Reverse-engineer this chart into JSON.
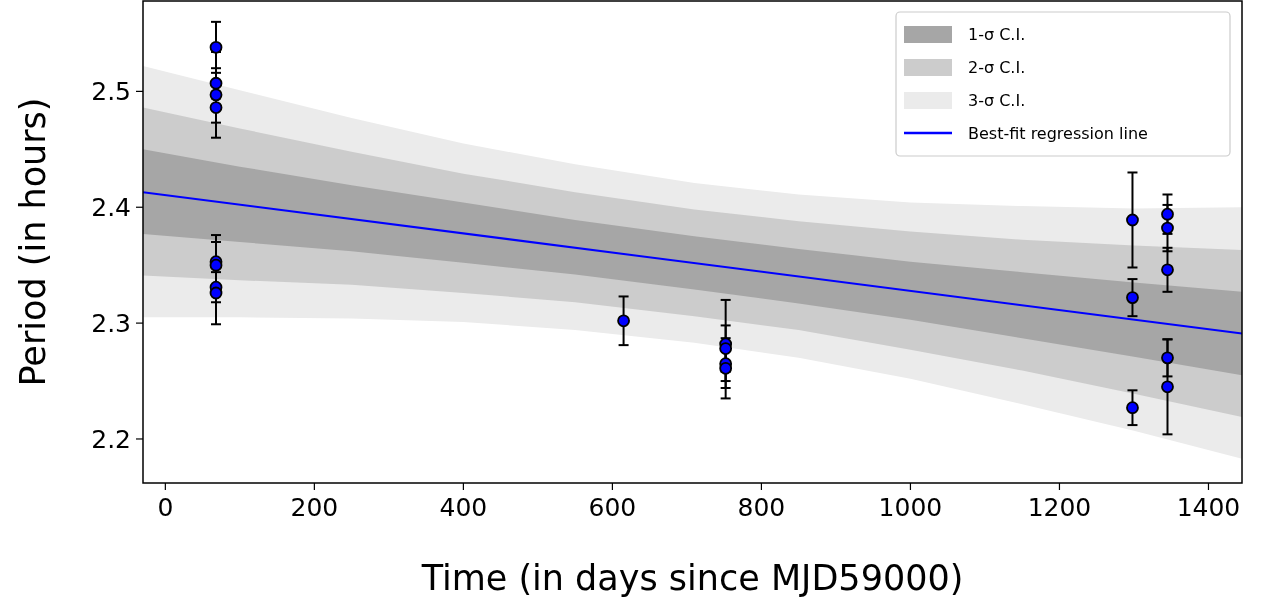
{
  "chart_data": {
    "type": "scatter",
    "xlabel": "Time (in days since MJD59000)",
    "ylabel": "Period (in hours)",
    "xlim": [
      -30,
      1445
    ],
    "ylim": [
      2.162,
      2.578
    ],
    "xticks": [
      0,
      200,
      400,
      600,
      800,
      1000,
      1200,
      1400
    ],
    "yticks": [
      2.2,
      2.3,
      2.4,
      2.5
    ],
    "grid": false,
    "legend": "top right",
    "series": [
      {
        "name": "3-σ C.I.",
        "type": "line",
        "color": "#ebebeb",
        "x": [
          -30,
          100,
          250,
          400,
          550,
          710,
          850,
          1000,
          1150,
          1300,
          1445
        ],
        "values": [
          null,
          null,
          null,
          null,
          null,
          null,
          null,
          null,
          null,
          null,
          null
        ],
        "upper": [
          2.522,
          2.501,
          2.477,
          2.455,
          2.437,
          2.421,
          2.411,
          2.404,
          2.401,
          2.399,
          2.4
        ],
        "lower": [
          2.305,
          2.305,
          2.304,
          2.301,
          2.294,
          2.283,
          2.27,
          2.252,
          2.23,
          2.207,
          2.183
        ]
      },
      {
        "name": "2-σ C.I.",
        "type": "line",
        "color": "#cccccc",
        "x": [
          -30,
          100,
          250,
          400,
          550,
          710,
          850,
          1000,
          1150,
          1300,
          1445
        ],
        "values": [
          null,
          null,
          null,
          null,
          null,
          null,
          null,
          null,
          null,
          null,
          null
        ],
        "upper": [
          2.486,
          2.468,
          2.448,
          2.429,
          2.413,
          2.398,
          2.388,
          2.379,
          2.372,
          2.367,
          2.363
        ],
        "lower": [
          2.341,
          2.337,
          2.333,
          2.326,
          2.318,
          2.306,
          2.294,
          2.277,
          2.259,
          2.239,
          2.219
        ]
      },
      {
        "name": "1-σ C.I.",
        "type": "line",
        "color": "#a6a6a6",
        "x": [
          -30,
          100,
          250,
          400,
          550,
          710,
          850,
          1000,
          1150,
          1300,
          1445
        ],
        "values": [
          null,
          null,
          null,
          null,
          null,
          null,
          null,
          null,
          null,
          null,
          null
        ],
        "upper": [
          2.45,
          2.435,
          2.419,
          2.404,
          2.389,
          2.375,
          2.364,
          2.353,
          2.344,
          2.335,
          2.327
        ],
        "lower": [
          2.377,
          2.37,
          2.362,
          2.352,
          2.342,
          2.329,
          2.317,
          2.303,
          2.287,
          2.271,
          2.255
        ]
      },
      {
        "name": "Best-fit regression line",
        "type": "line",
        "color": "#0000ff",
        "line_style": "solid",
        "x": [
          -30,
          1445
        ],
        "values": [
          2.413,
          2.291
        ]
      },
      {
        "marker": "circle",
        "color": "#0000ff",
        "x": [
          68,
          68,
          68,
          68,
          68,
          68,
          68,
          68,
          615,
          752,
          752,
          752,
          752,
          1298,
          1298,
          1298,
          1345,
          1345,
          1345,
          1345,
          1345
        ],
        "values": [
          2.538,
          2.507,
          2.497,
          2.486,
          2.353,
          2.35,
          2.331,
          2.326,
          2.302,
          2.282,
          2.278,
          2.265,
          2.261,
          2.389,
          2.322,
          2.227,
          2.394,
          2.382,
          2.346,
          2.27,
          2.245
        ],
        "errors": [
          0.022,
          0.013,
          0.037,
          0.013,
          0.023,
          0.02,
          0.013,
          0.027,
          0.021,
          0.038,
          0.02,
          0.015,
          0.026,
          0.041,
          0.016,
          0.015,
          0.017,
          0.02,
          0.019,
          0.016,
          0.041
        ]
      }
    ]
  }
}
